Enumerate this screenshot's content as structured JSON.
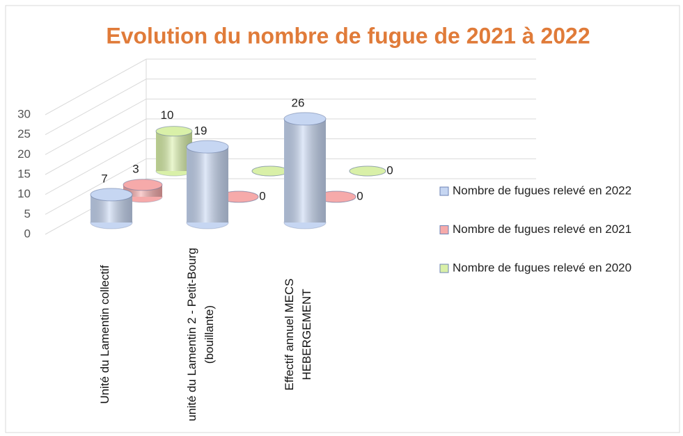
{
  "chart_data": {
    "type": "bar3d",
    "title": "Evolution du nombre de fugue de 2021 à 2022",
    "categories": [
      "Unité du Lamentin collectif",
      "unité du Lamentin 2 - Petit-Bourg (bouillante)",
      "Effectif annuel MECS HEBERGEMENT"
    ],
    "series": [
      {
        "name": "Nombre de fugues relevé en 2022",
        "color": "#c6d6f2",
        "values": [
          7,
          19,
          26
        ]
      },
      {
        "name": "Nombre de fugues relevé en 2021",
        "color": "#f6aaaa",
        "values": [
          3,
          0,
          0
        ]
      },
      {
        "name": "Nombre de fugues relevé en 2020",
        "color": "#d9f0a8",
        "values": [
          10,
          0,
          0
        ]
      }
    ],
    "ylim": [
      0,
      30
    ],
    "yticks": [
      0,
      5,
      10,
      15,
      20,
      25,
      30
    ],
    "grid": true,
    "legend": "right"
  }
}
